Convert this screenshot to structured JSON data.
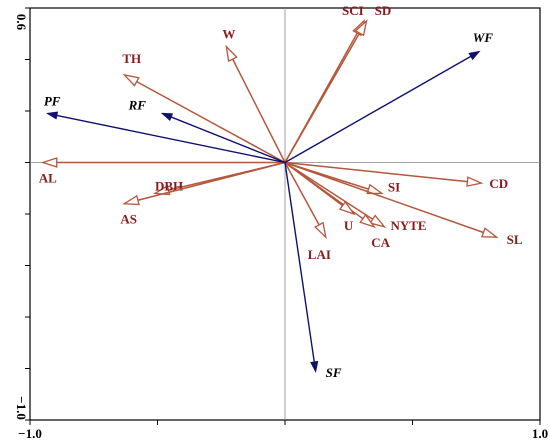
{
  "chart_data": {
    "type": "biplot",
    "xlim": [
      -1.0,
      1.0
    ],
    "ylim": [
      -1.0,
      0.6
    ],
    "x_tick_labels": [
      {
        "value": -1.0,
        "label": "−1.0"
      },
      {
        "value": 1.0,
        "label": "1.0"
      }
    ],
    "y_tick_labels": [
      {
        "value": 0.6,
        "label": "0.6"
      },
      {
        "value": -1.0,
        "label": "−1.0"
      }
    ],
    "x_minor_ticks": [
      -1.0,
      -0.5,
      0.0,
      0.5,
      1.0
    ],
    "y_minor_ticks": [
      -1.0,
      -0.8,
      -0.6,
      -0.4,
      -0.2,
      0.0,
      0.2,
      0.4,
      0.6
    ],
    "grid": false,
    "zero_lines": true,
    "colors": {
      "response": "#b5573c",
      "response_text": "#8b1a1a",
      "environment": "#101070",
      "axis": "#000000",
      "zero_line": "#888888"
    },
    "response_vectors": [
      {
        "label": "SCI",
        "x": 0.31,
        "y": 0.55
      },
      {
        "label": "SD",
        "x": 0.32,
        "y": 0.55
      },
      {
        "label": "W",
        "x": -0.23,
        "y": 0.45
      },
      {
        "label": "TH",
        "x": -0.63,
        "y": 0.34
      },
      {
        "label": "AL",
        "x": -0.95,
        "y": 0.0
      },
      {
        "label": "DBH",
        "x": -0.51,
        "y": -0.12
      },
      {
        "label": "AS",
        "x": -0.63,
        "y": -0.16
      },
      {
        "label": "SI",
        "x": 0.38,
        "y": -0.12
      },
      {
        "label": "CD",
        "x": 0.77,
        "y": -0.08
      },
      {
        "label": "SL",
        "x": 0.83,
        "y": -0.29
      },
      {
        "label": "NYTE",
        "x": 0.39,
        "y": -0.25
      },
      {
        "label": "CA",
        "x": 0.35,
        "y": -0.25
      },
      {
        "label": "U",
        "x": 0.27,
        "y": -0.2
      },
      {
        "label": "LAI",
        "x": 0.16,
        "y": -0.29
      }
    ],
    "environmental_vectors": [
      {
        "label": "PF",
        "x": -0.93,
        "y": 0.19
      },
      {
        "label": "RF",
        "x": -0.48,
        "y": 0.19
      },
      {
        "label": "WF",
        "x": 0.76,
        "y": 0.43
      },
      {
        "label": "SF",
        "x": 0.12,
        "y": -0.81
      }
    ]
  }
}
